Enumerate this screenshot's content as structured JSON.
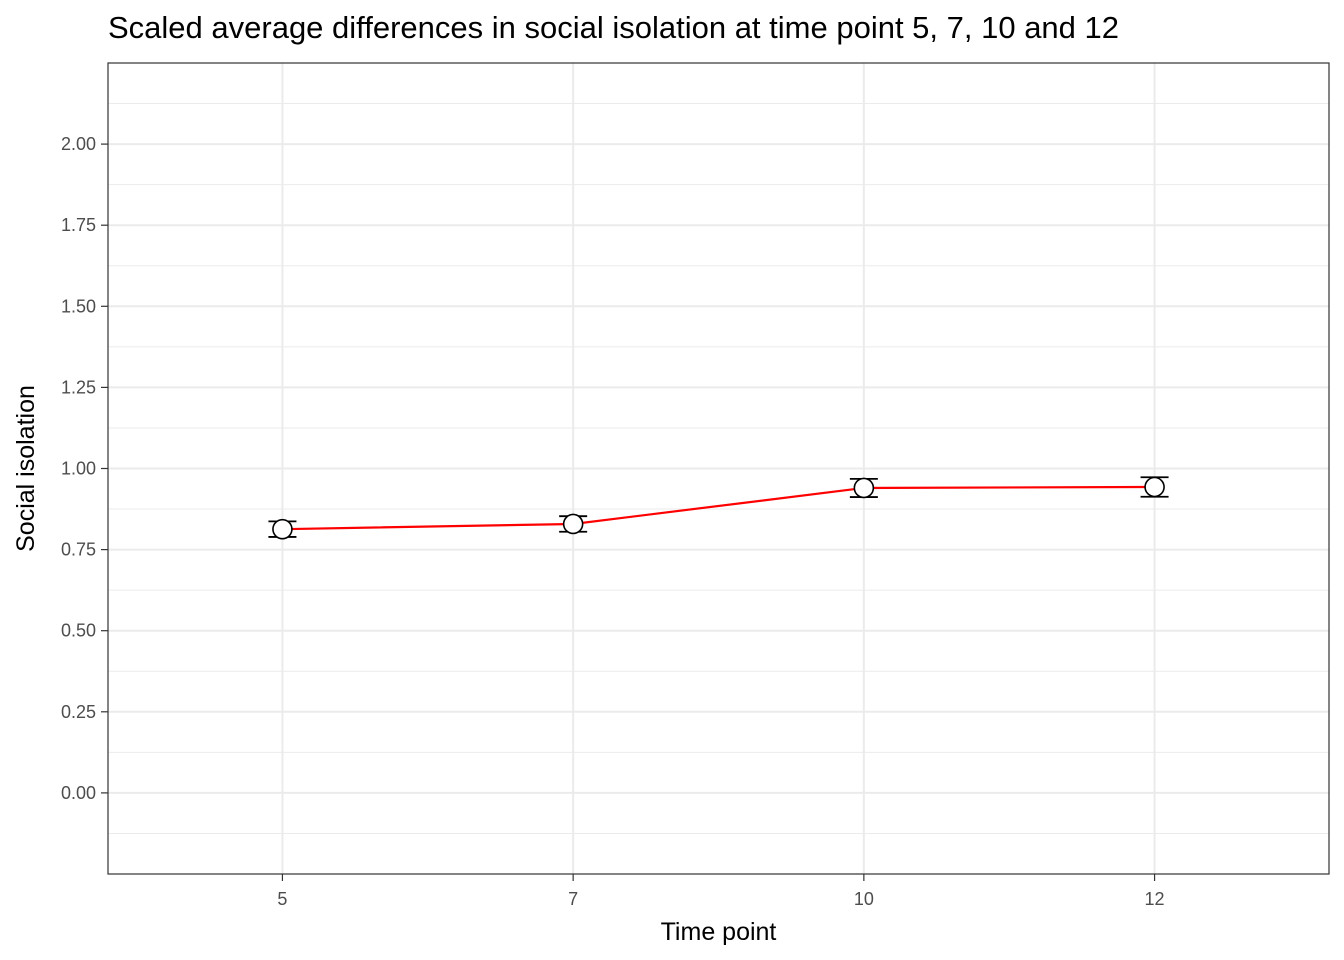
{
  "chart_data": {
    "type": "line",
    "title": "Scaled average differences in social isolation at time point 5, 7, 10 and 12",
    "xlabel": "Time point",
    "ylabel": "Social isolation",
    "categories": [
      "5",
      "7",
      "10",
      "12"
    ],
    "series": [
      {
        "values": [
          0.813,
          0.829,
          0.94,
          0.943
        ],
        "error_low": [
          0.789,
          0.805,
          0.912,
          0.913
        ],
        "error_high": [
          0.837,
          0.853,
          0.968,
          0.973
        ],
        "line_color": "#ff0000",
        "marker_fill": "#ffffff",
        "marker_stroke": "#000000"
      }
    ],
    "yticks": [
      "0.00",
      "0.25",
      "0.50",
      "0.75",
      "1.00",
      "1.25",
      "1.50",
      "1.75",
      "2.00"
    ],
    "ylim": [
      -0.25,
      2.25
    ],
    "xlim": [
      0.4,
      4.6
    ],
    "grid": true,
    "theme": "bw",
    "colors": {
      "grid": "#ebebeb",
      "panel_border": "#333333",
      "tick_text": "#4d4d4d"
    }
  }
}
